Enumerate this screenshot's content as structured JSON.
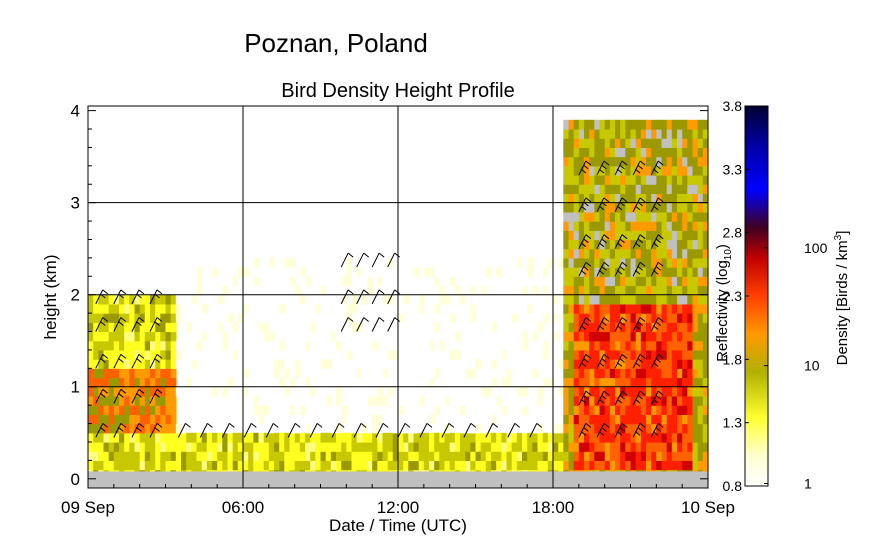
{
  "chart_data": {
    "type": "heatmap",
    "suptitle": "Poznan, Poland",
    "title": "Bird Density Height Profile",
    "xlabel": "Date / Time (UTC)",
    "ylabel": "height (km)",
    "x_ticks": [
      "09 Sep",
      "06:00",
      "12:00",
      "18:00",
      "10 Sep"
    ],
    "x_tick_hours": [
      0,
      6,
      12,
      18,
      24
    ],
    "xlim_hours": [
      0,
      24
    ],
    "y_ticks": [
      "0",
      "1",
      "2",
      "3",
      "4"
    ],
    "ylim": [
      -0.1,
      4.05
    ],
    "grid": true,
    "colorbar": {
      "label_reflectivity": "Reflectivity (log",
      "label_reflectivity_sub": "10",
      "label_reflectivity_end": ")",
      "label_density": "Density [Birds / km",
      "label_density_sup": "3",
      "label_density_end": "]",
      "reflectivity_ticks": [
        "0.8",
        "1.3",
        "1.8",
        "2.3",
        "2.8",
        "3.3",
        "3.8"
      ],
      "reflectivity_values": [
        0.8,
        1.3,
        1.8,
        2.3,
        2.8,
        3.3,
        3.8
      ],
      "density_ticks": [
        "1",
        "10",
        "100"
      ],
      "density_values": [
        1,
        10,
        100
      ],
      "range": [
        0.8,
        3.8
      ],
      "colors": [
        "#ffffe8",
        "#ffff40",
        "#a0a000",
        "#ff9900",
        "#ff2000",
        "#a00000",
        "#200030",
        "#0000ff",
        "#000040"
      ]
    },
    "density_regions": [
      {
        "period_hours": [
          0,
          3.5
        ],
        "height_km": [
          0,
          2
        ],
        "reflectivity": 1.5
      },
      {
        "period_hours": [
          0,
          3.5
        ],
        "height_km": [
          0.5,
          1.2
        ],
        "reflectivity": 2.0
      },
      {
        "period_hours": [
          3.5,
          18.5
        ],
        "height_km": [
          0,
          0.5
        ],
        "reflectivity": 1.5
      },
      {
        "period_hours": [
          3.5,
          18.5
        ],
        "height_km": [
          0.5,
          2.4
        ],
        "reflectivity": 1.0
      },
      {
        "period_hours": [
          18.5,
          24
        ],
        "height_km": [
          0,
          3.9
        ],
        "reflectivity": 1.8
      },
      {
        "period_hours": [
          18.8,
          23.5
        ],
        "height_km": [
          0.1,
          1.9
        ],
        "reflectivity": 2.3
      }
    ],
    "no_data_color": "#c0c0c0"
  }
}
